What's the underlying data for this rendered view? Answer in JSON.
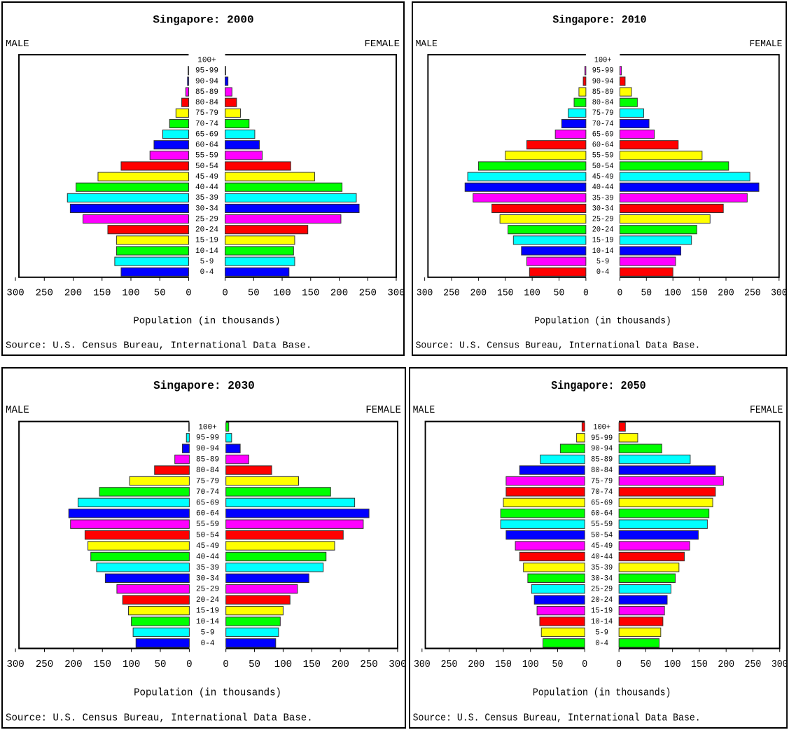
{
  "chart_data": [
    {
      "type": "bar",
      "title": "Singapore: 2000",
      "categories": [
        "0-4",
        "5-9",
        "10-14",
        "15-19",
        "20-24",
        "25-29",
        "30-34",
        "35-39",
        "40-44",
        "45-49",
        "50-54",
        "55-59",
        "60-64",
        "65-69",
        "70-74",
        "75-79",
        "80-84",
        "85-89",
        "90-94",
        "95-99",
        "100+"
      ],
      "series": [
        {
          "name": "MALE",
          "values": [
            117,
            128,
            125,
            125,
            140,
            183,
            205,
            210,
            195,
            157,
            117,
            67,
            60,
            45,
            33,
            22,
            12,
            5,
            2,
            1,
            0
          ]
        },
        {
          "name": "FEMALE",
          "values": [
            112,
            122,
            120,
            122,
            145,
            203,
            235,
            230,
            205,
            157,
            115,
            65,
            60,
            52,
            42,
            27,
            20,
            12,
            5,
            1,
            0
          ]
        }
      ],
      "colors": [
        "#0000ff",
        "#00ffff",
        "#00ff00",
        "#ffff00",
        "#ff0000",
        "#ff00ff"
      ],
      "xlim": [
        0,
        300
      ],
      "xticks": [
        0,
        50,
        100,
        150,
        200,
        250,
        300
      ],
      "x_label": "Population (in thousands)",
      "source": "Source: U.S. Census Bureau, International Data Base."
    },
    {
      "type": "bar",
      "title": "Singapore: 2010",
      "categories": [
        "0-4",
        "5-9",
        "10-14",
        "15-19",
        "20-24",
        "25-29",
        "30-34",
        "35-39",
        "40-44",
        "45-49",
        "50-54",
        "55-59",
        "60-64",
        "65-69",
        "70-74",
        "75-79",
        "80-84",
        "85-89",
        "90-94",
        "95-99",
        "100+"
      ],
      "series": [
        {
          "name": "MALE",
          "values": [
            105,
            110,
            120,
            135,
            145,
            160,
            175,
            210,
            225,
            220,
            200,
            150,
            110,
            57,
            45,
            33,
            22,
            13,
            5,
            2,
            0
          ]
        },
        {
          "name": "FEMALE",
          "values": [
            100,
            105,
            115,
            135,
            145,
            170,
            195,
            240,
            262,
            245,
            205,
            155,
            110,
            65,
            55,
            45,
            33,
            22,
            10,
            3,
            0
          ]
        }
      ],
      "colors": [
        "#ff0000",
        "#ff00ff",
        "#0000ff",
        "#00ffff",
        "#00ff00",
        "#ffff00"
      ],
      "xlim": [
        0,
        300
      ],
      "xticks": [
        0,
        50,
        100,
        150,
        200,
        250,
        300
      ],
      "x_label": "Population (in thousands)",
      "source": "Source: U.S. Census Bureau, International Data Base."
    },
    {
      "type": "bar",
      "title": "Singapore: 2030",
      "categories": [
        "0-4",
        "5-9",
        "10-14",
        "15-19",
        "20-24",
        "25-29",
        "30-34",
        "35-39",
        "40-44",
        "45-49",
        "50-54",
        "55-59",
        "60-64",
        "65-69",
        "70-74",
        "75-79",
        "80-84",
        "85-89",
        "90-94",
        "95-99",
        "100+"
      ],
      "series": [
        {
          "name": "MALE",
          "values": [
            92,
            97,
            100,
            105,
            115,
            125,
            145,
            160,
            170,
            175,
            180,
            205,
            208,
            192,
            155,
            103,
            60,
            25,
            12,
            5,
            1
          ]
        },
        {
          "name": "FEMALE",
          "values": [
            87,
            92,
            95,
            100,
            112,
            125,
            145,
            170,
            175,
            190,
            205,
            240,
            250,
            225,
            183,
            127,
            80,
            40,
            25,
            10,
            5
          ]
        }
      ],
      "colors": [
        "#0000ff",
        "#00ffff",
        "#00ff00",
        "#ffff00",
        "#ff0000",
        "#ff00ff"
      ],
      "xlim": [
        0,
        300
      ],
      "xticks": [
        0,
        50,
        100,
        150,
        200,
        250,
        300
      ],
      "x_label": "Population (in thousands)",
      "source": "Source: U.S. Census Bureau, International Data Base."
    },
    {
      "type": "bar",
      "title": "Singapore: 2050",
      "categories": [
        "0-4",
        "5-9",
        "10-14",
        "15-19",
        "20-24",
        "25-29",
        "30-34",
        "35-39",
        "40-44",
        "45-49",
        "50-54",
        "55-59",
        "60-64",
        "65-69",
        "70-74",
        "75-79",
        "80-84",
        "85-89",
        "90-94",
        "95-99",
        "100+"
      ],
      "series": [
        {
          "name": "MALE",
          "values": [
            77,
            80,
            83,
            88,
            93,
            98,
            105,
            113,
            120,
            128,
            145,
            155,
            155,
            150,
            145,
            145,
            120,
            82,
            45,
            15,
            5
          ]
        },
        {
          "name": "FEMALE",
          "values": [
            75,
            78,
            82,
            85,
            90,
            97,
            105,
            112,
            122,
            132,
            148,
            165,
            168,
            175,
            180,
            195,
            180,
            133,
            80,
            35,
            12
          ]
        }
      ],
      "colors": [
        "#00ff00",
        "#ffff00",
        "#ff0000",
        "#ff00ff",
        "#0000ff",
        "#00ffff"
      ],
      "xlim": [
        0,
        300
      ],
      "xticks": [
        0,
        50,
        100,
        150,
        200,
        250,
        300
      ],
      "x_label": "Population (in thousands)",
      "source": "Source: U.S. Census Bureau, International Data Base."
    }
  ]
}
